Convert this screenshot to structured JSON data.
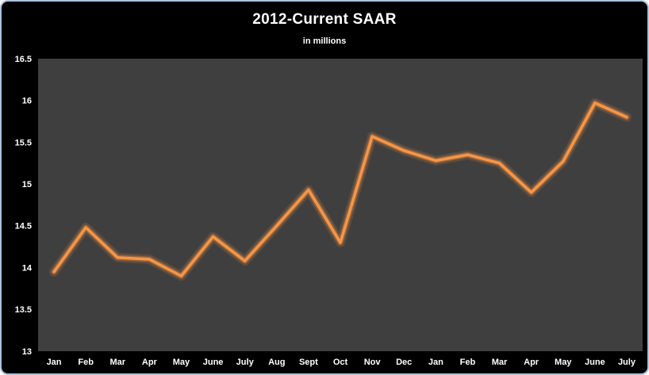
{
  "chart_data": {
    "type": "line",
    "title": "2012-Current SAAR",
    "subtitle": "in millions",
    "categories": [
      "Jan",
      "Feb",
      "Mar",
      "Apr",
      "May",
      "June",
      "July",
      "Aug",
      "Sept",
      "Oct",
      "Nov",
      "Dec",
      "Jan",
      "Feb",
      "Mar",
      "Apr",
      "May",
      "June",
      "July"
    ],
    "values": [
      13.95,
      14.48,
      14.12,
      14.1,
      13.9,
      14.37,
      14.08,
      14.5,
      14.93,
      14.3,
      15.57,
      15.4,
      15.28,
      15.35,
      15.25,
      14.9,
      15.27,
      15.97,
      15.8
    ],
    "ylim": [
      13,
      16.5
    ],
    "yticks": [
      16.5,
      16,
      15.5,
      15,
      14.5,
      14,
      13.5,
      13
    ],
    "ytick_labels": [
      "16.5",
      "16",
      "15.5",
      "15",
      "14.5",
      "14",
      "13.5",
      "13"
    ],
    "grid": false,
    "legend": "none",
    "colors": {
      "line": "#F79646",
      "plot_bg": "#3F3F3F",
      "background": "#000000",
      "border": "#A9C3DC",
      "text": "#FFFFFF"
    }
  }
}
